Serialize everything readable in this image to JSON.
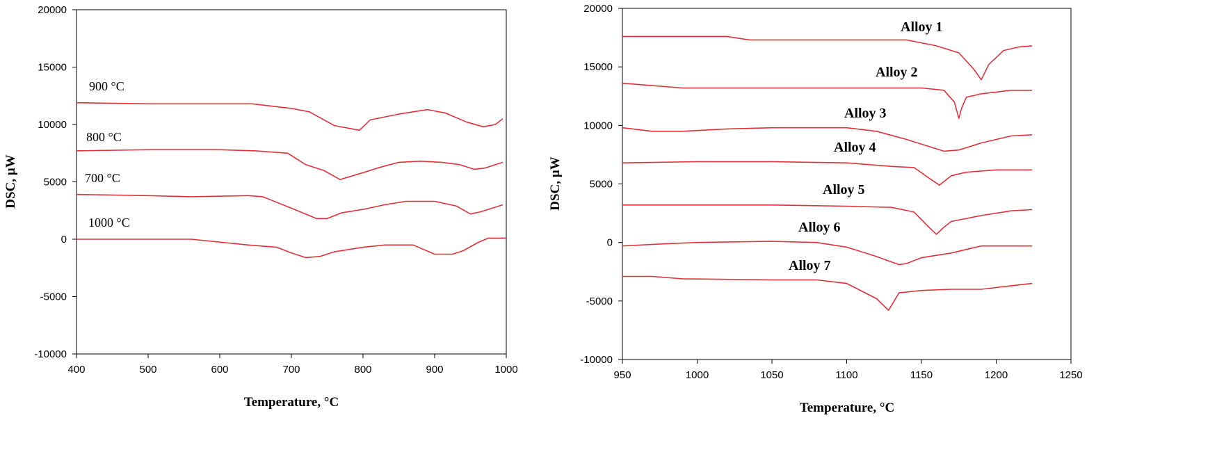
{
  "chart_data": [
    {
      "type": "line",
      "title": "",
      "xlabel": "Temperature, °C",
      "ylabel": "DSC, µW",
      "xlim": [
        400,
        1000
      ],
      "ylim": [
        -10000,
        20000
      ],
      "x_ticks": [
        "400",
        "500",
        "600",
        "700",
        "800",
        "900",
        "1000"
      ],
      "y_ticks": [
        "20000",
        "15000",
        "10000",
        "5000",
        "0",
        "-5000",
        "-10000"
      ],
      "grid": false,
      "line_color": "#e0303a",
      "series": [
        {
          "name": "900 °C",
          "x": [
            400,
            500,
            600,
            645,
            700,
            725,
            760,
            795,
            810,
            850,
            890,
            915,
            945,
            968,
            985,
            995
          ],
          "y": [
            11900,
            11800,
            11800,
            11800,
            11400,
            11100,
            9900,
            9500,
            10400,
            10900,
            11300,
            11000,
            10200,
            9800,
            10000,
            10500
          ]
        },
        {
          "name": "800 °C",
          "x": [
            400,
            500,
            600,
            650,
            695,
            720,
            745,
            768,
            800,
            820,
            850,
            880,
            910,
            935,
            955,
            970,
            995
          ],
          "y": [
            7700,
            7800,
            7800,
            7700,
            7500,
            6500,
            6000,
            5200,
            5800,
            6200,
            6700,
            6800,
            6700,
            6500,
            6100,
            6200,
            6700
          ]
        },
        {
          "name": "700 °C",
          "x": [
            400,
            500,
            560,
            640,
            660,
            700,
            735,
            750,
            770,
            800,
            830,
            860,
            900,
            930,
            950,
            965,
            995
          ],
          "y": [
            3900,
            3800,
            3700,
            3800,
            3700,
            2700,
            1800,
            1800,
            2300,
            2600,
            3000,
            3300,
            3300,
            2900,
            2200,
            2400,
            3000
          ]
        },
        {
          "name": "1000 °C",
          "x": [
            400,
            500,
            560,
            640,
            680,
            700,
            720,
            740,
            760,
            800,
            830,
            870,
            900,
            925,
            940,
            960,
            975,
            990,
            1000
          ],
          "y": [
            0,
            0,
            0,
            -500,
            -700,
            -1200,
            -1600,
            -1500,
            -1100,
            -700,
            -500,
            -500,
            -1300,
            -1300,
            -1000,
            -300,
            100,
            100,
            100
          ]
        }
      ]
    },
    {
      "type": "line",
      "title": "",
      "xlabel": "Temperature, °C",
      "ylabel": "DSC, µW",
      "xlim": [
        950,
        1250
      ],
      "ylim": [
        -10000,
        20000
      ],
      "x_ticks": [
        "950",
        "1000",
        "1050",
        "1100",
        "1150",
        "1200",
        "1250"
      ],
      "y_ticks": [
        "20000",
        "15000",
        "10000",
        "5000",
        "0",
        "-5000",
        "-10000"
      ],
      "grid": false,
      "line_color": "#e0303a",
      "series": [
        {
          "name": "Alloy 1",
          "x": [
            950,
            1000,
            1020,
            1035,
            1100,
            1140,
            1160,
            1175,
            1185,
            1190,
            1195,
            1205,
            1215,
            1224
          ],
          "y": [
            17600,
            17600,
            17600,
            17300,
            17300,
            17300,
            16800,
            16200,
            14800,
            13900,
            15200,
            16400,
            16700,
            16800
          ]
        },
        {
          "name": "Alloy 2",
          "x": [
            950,
            970,
            990,
            1050,
            1100,
            1150,
            1165,
            1172,
            1175,
            1177,
            1180,
            1190,
            1210,
            1224
          ],
          "y": [
            13600,
            13400,
            13200,
            13200,
            13200,
            13200,
            13000,
            12000,
            10600,
            11500,
            12400,
            12700,
            13000,
            13000
          ]
        },
        {
          "name": "Alloy 3",
          "x": [
            950,
            970,
            990,
            1020,
            1050,
            1080,
            1100,
            1120,
            1140,
            1160,
            1165,
            1175,
            1190,
            1210,
            1224
          ],
          "y": [
            9800,
            9500,
            9500,
            9700,
            9800,
            9800,
            9800,
            9500,
            8800,
            8000,
            7800,
            7900,
            8500,
            9100,
            9200
          ]
        },
        {
          "name": "Alloy 4",
          "x": [
            950,
            1000,
            1050,
            1100,
            1130,
            1145,
            1155,
            1162,
            1170,
            1180,
            1200,
            1224
          ],
          "y": [
            6800,
            6900,
            6900,
            6800,
            6500,
            6400,
            5500,
            4900,
            5700,
            6000,
            6200,
            6200
          ]
        },
        {
          "name": "Alloy 5",
          "x": [
            950,
            1000,
            1050,
            1100,
            1130,
            1145,
            1155,
            1160,
            1165,
            1170,
            1190,
            1210,
            1224
          ],
          "y": [
            3200,
            3200,
            3200,
            3100,
            3000,
            2600,
            1300,
            700,
            1300,
            1800,
            2300,
            2700,
            2800
          ]
        },
        {
          "name": "Alloy 6",
          "x": [
            950,
            965,
            980,
            1000,
            1050,
            1080,
            1100,
            1120,
            1135,
            1140,
            1150,
            1170,
            1190,
            1224
          ],
          "y": [
            -300,
            -200,
            -100,
            0,
            100,
            0,
            -400,
            -1200,
            -1900,
            -1800,
            -1300,
            -900,
            -300,
            -300
          ]
        },
        {
          "name": "Alloy 7",
          "x": [
            950,
            970,
            990,
            1050,
            1080,
            1100,
            1120,
            1128,
            1135,
            1150,
            1170,
            1190,
            1210,
            1224
          ],
          "y": [
            -2900,
            -2900,
            -3100,
            -3200,
            -3200,
            -3500,
            -4800,
            -5800,
            -4300,
            -4100,
            -4000,
            -4000,
            -3700,
            -3500
          ]
        }
      ]
    }
  ]
}
